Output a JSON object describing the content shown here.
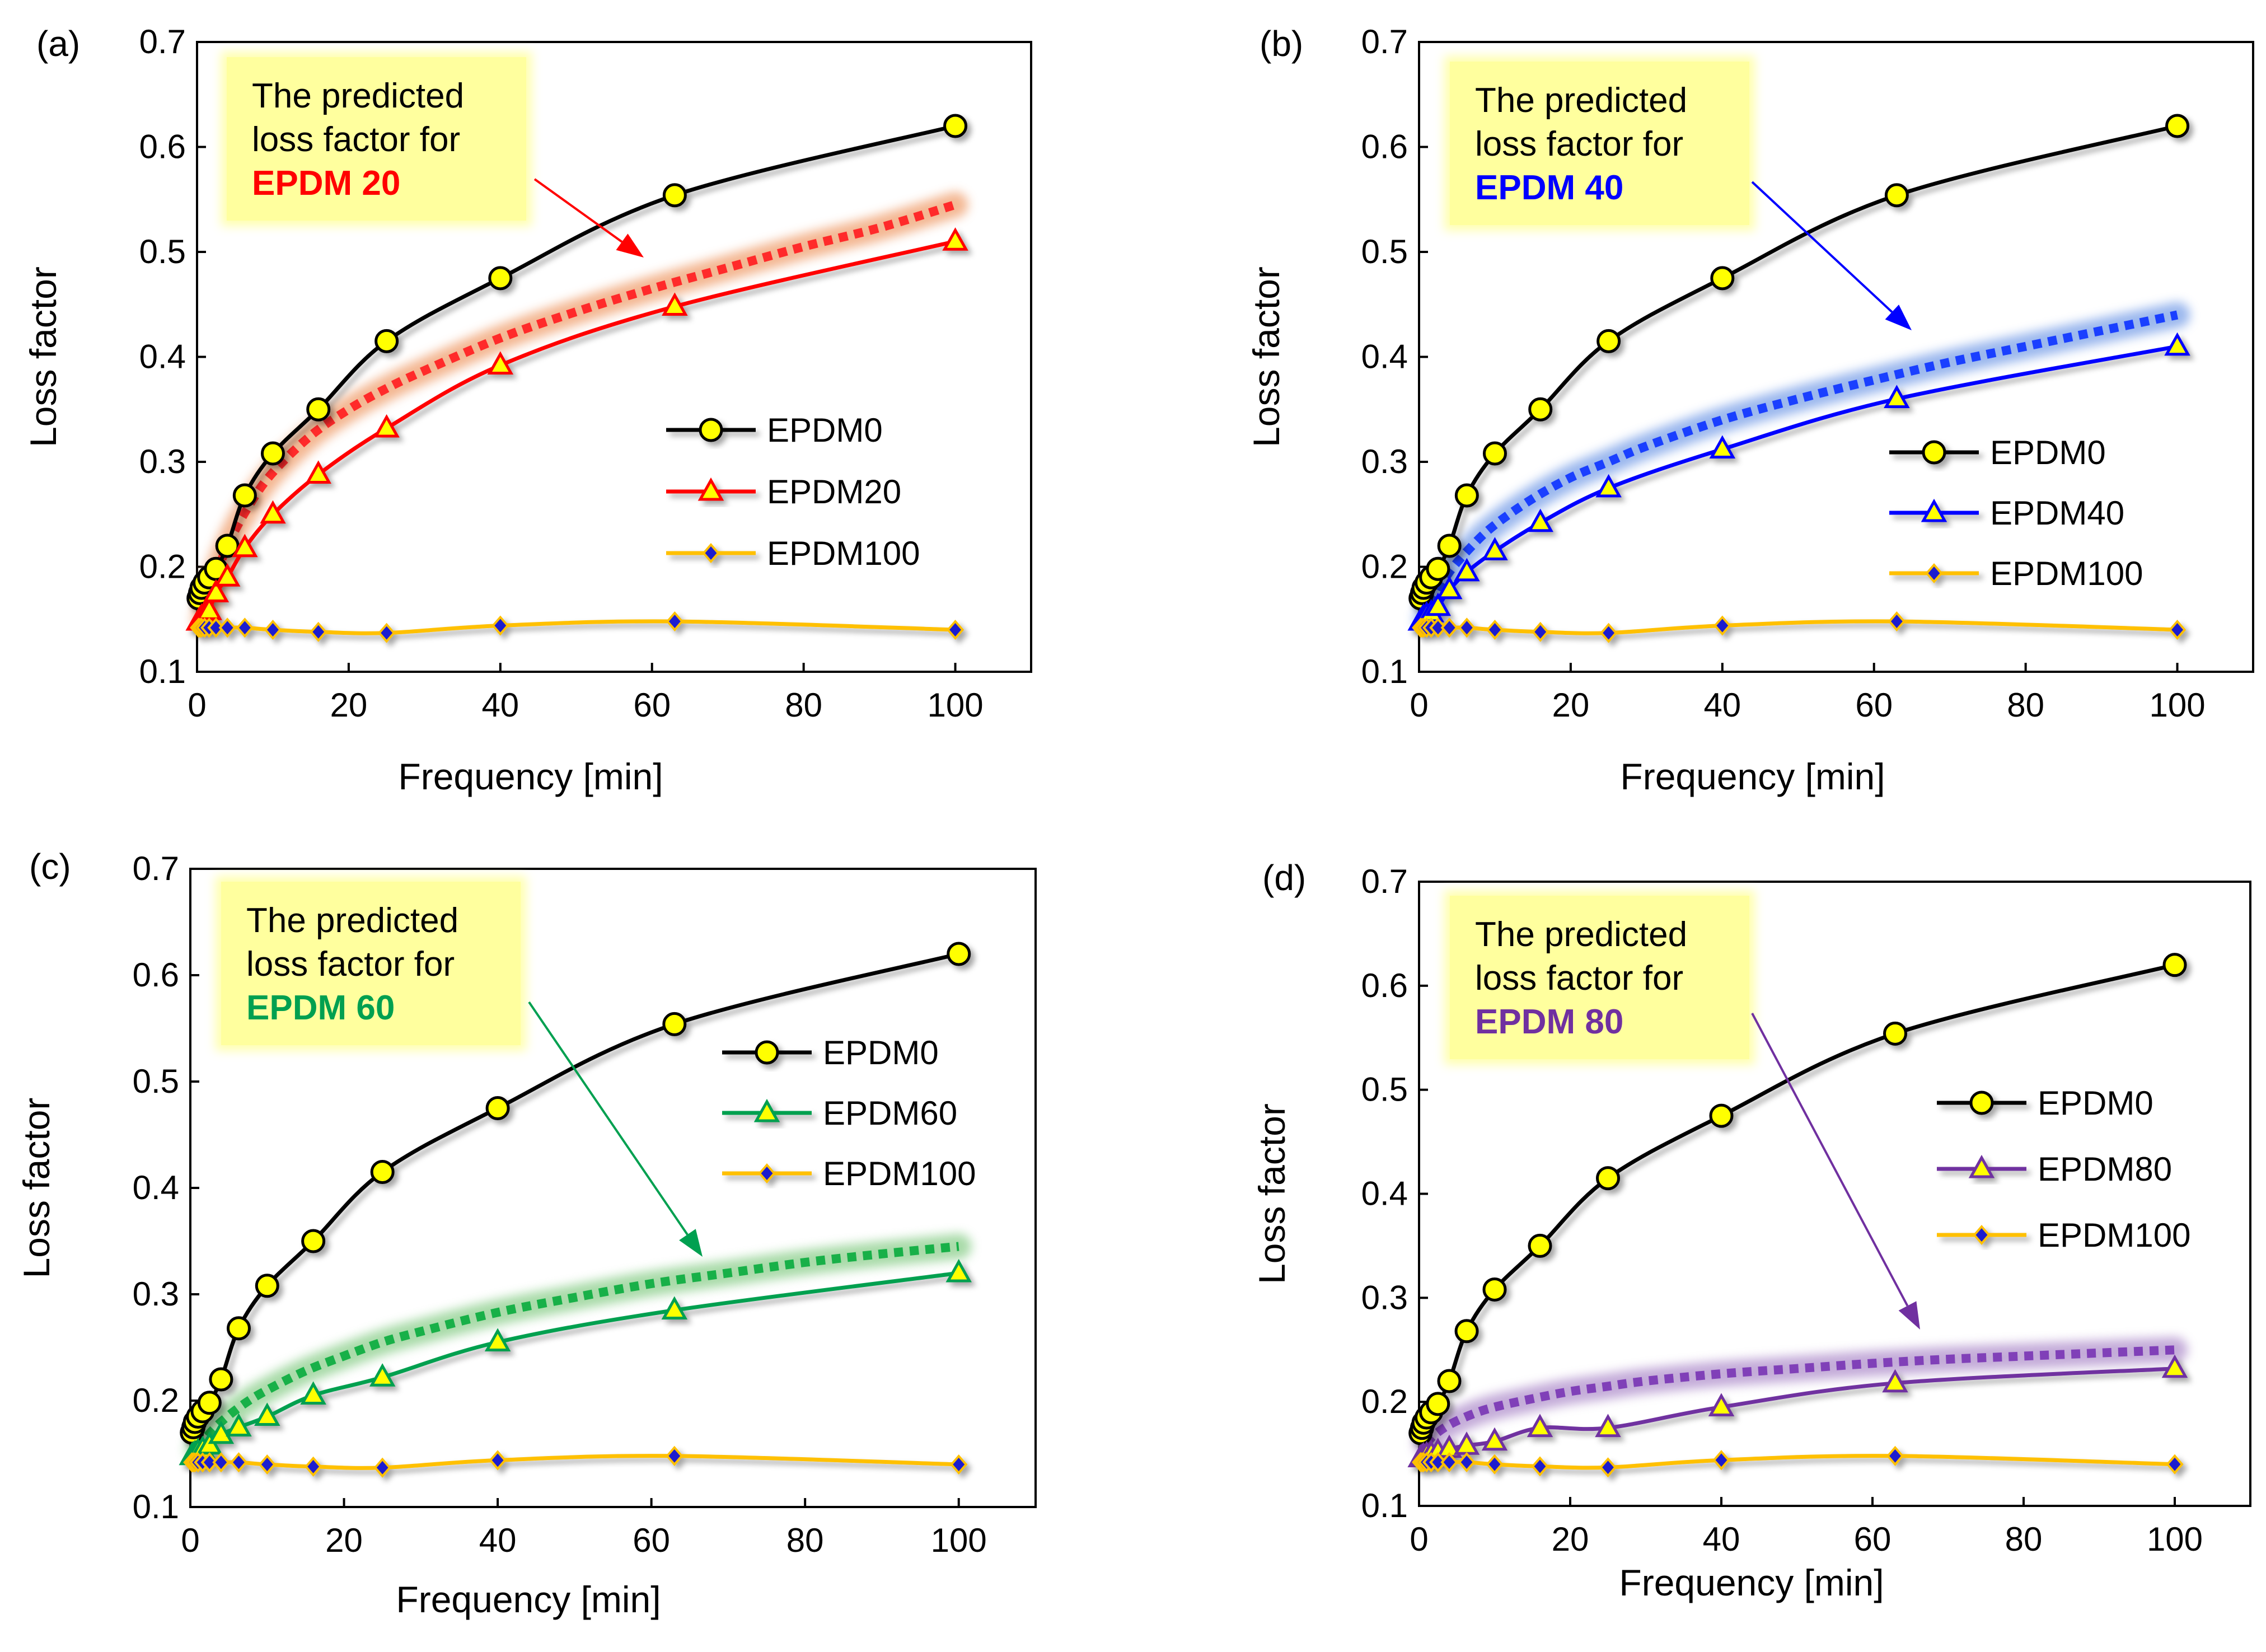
{
  "chart_data": [
    {
      "panel": "(a)",
      "type": "line",
      "xlabel": "Frequency [min]",
      "ylabel": "Loss factor",
      "xlim": [
        0,
        110
      ],
      "ylim": [
        0.1,
        0.7
      ],
      "xticks": [
        "0",
        "20",
        "40",
        "60",
        "80",
        "100"
      ],
      "yticks": [
        "0.1",
        "0.2",
        "0.3",
        "0.4",
        "0.5",
        "0.6",
        "0.7"
      ],
      "callout": {
        "line1": "The predicted",
        "line2": "loss factor for",
        "line3": "EPDM 20",
        "color": "#ff0000"
      },
      "series": [
        {
          "name": "EPDM0",
          "marker": "circle",
          "color": "#000000",
          "marker_fill": "#ffff00",
          "x": [
            0.2,
            0.4,
            0.6,
            1,
            1.6,
            2.5,
            4,
            6.3,
            10,
            16,
            25,
            40,
            63,
            100
          ],
          "y": [
            0.17,
            0.175,
            0.18,
            0.185,
            0.19,
            0.198,
            0.22,
            0.268,
            0.308,
            0.35,
            0.415,
            0.475,
            0.554,
            0.62
          ]
        },
        {
          "name": "EPDM20",
          "marker": "triangle",
          "color": "#ff0000",
          "marker_fill": "#ffff00",
          "x": [
            0.2,
            0.4,
            0.6,
            1,
            1.6,
            2.5,
            4,
            6.3,
            10,
            16,
            25,
            40,
            63,
            100
          ],
          "y": [
            0.148,
            0.15,
            0.152,
            0.155,
            0.158,
            0.175,
            0.19,
            0.218,
            0.25,
            0.288,
            0.332,
            0.392,
            0.448,
            0.51
          ]
        },
        {
          "name": "EPDM100",
          "marker": "diamond",
          "color": "#ffc000",
          "marker_fill": "#1f1fcf",
          "x": [
            0.2,
            0.4,
            0.6,
            1,
            1.6,
            2.5,
            4,
            6.3,
            10,
            16,
            25,
            40,
            63,
            100
          ],
          "y": [
            0.142,
            0.142,
            0.142,
            0.142,
            0.142,
            0.142,
            0.142,
            0.142,
            0.14,
            0.138,
            0.137,
            0.144,
            0.148,
            0.14
          ]
        },
        {
          "name": "",
          "style": "predicted",
          "color": "#ff2a2a",
          "glow": "#f0a070",
          "x": [
            1,
            2,
            4,
            7,
            10,
            15,
            20,
            25,
            30,
            40,
            50,
            60,
            70,
            80,
            90,
            100
          ],
          "y": [
            0.15,
            0.18,
            0.22,
            0.26,
            0.29,
            0.325,
            0.35,
            0.37,
            0.387,
            0.418,
            0.443,
            0.465,
            0.485,
            0.505,
            0.523,
            0.545
          ]
        }
      ]
    },
    {
      "panel": "(b)",
      "type": "line",
      "xlabel": "Frequency [min]",
      "ylabel": "Loss factor",
      "xlim": [
        0,
        110
      ],
      "ylim": [
        0.1,
        0.7
      ],
      "xticks": [
        "0",
        "20",
        "40",
        "60",
        "80",
        "100"
      ],
      "yticks": [
        "0.1",
        "0.2",
        "0.3",
        "0.4",
        "0.5",
        "0.6",
        "0.7"
      ],
      "callout": {
        "line1": "The predicted",
        "line2": "loss factor for",
        "line3": "EPDM 40",
        "color": "#0000ff"
      },
      "series": [
        {
          "name": "EPDM0",
          "marker": "circle",
          "color": "#000000",
          "marker_fill": "#ffff00",
          "x": [
            0.2,
            0.4,
            0.6,
            1,
            1.6,
            2.5,
            4,
            6.3,
            10,
            16,
            25,
            40,
            63,
            100
          ],
          "y": [
            0.17,
            0.175,
            0.18,
            0.185,
            0.19,
            0.198,
            0.22,
            0.268,
            0.308,
            0.35,
            0.415,
            0.475,
            0.554,
            0.62
          ]
        },
        {
          "name": "EPDM40",
          "marker": "triangle",
          "color": "#0000ff",
          "marker_fill": "#ffff00",
          "x": [
            0.2,
            0.4,
            0.6,
            1,
            1.6,
            2.5,
            4,
            6.3,
            10,
            16,
            25,
            40,
            63,
            100
          ],
          "y": [
            0.148,
            0.15,
            0.152,
            0.154,
            0.156,
            0.162,
            0.178,
            0.195,
            0.215,
            0.242,
            0.275,
            0.312,
            0.36,
            0.41
          ]
        },
        {
          "name": "EPDM100",
          "marker": "diamond",
          "color": "#ffc000",
          "marker_fill": "#1f1fcf",
          "x": [
            0.2,
            0.4,
            0.6,
            1,
            1.6,
            2.5,
            4,
            6.3,
            10,
            16,
            25,
            40,
            63,
            100
          ],
          "y": [
            0.142,
            0.142,
            0.142,
            0.142,
            0.142,
            0.142,
            0.142,
            0.142,
            0.14,
            0.138,
            0.137,
            0.144,
            0.148,
            0.14
          ]
        },
        {
          "name": "",
          "style": "predicted",
          "color": "#1a3fff",
          "glow": "#7aa0e8",
          "x": [
            1,
            2,
            4,
            7,
            10,
            15,
            20,
            25,
            30,
            40,
            50,
            60,
            70,
            80,
            90,
            100
          ],
          "y": [
            0.15,
            0.17,
            0.195,
            0.22,
            0.24,
            0.265,
            0.285,
            0.3,
            0.315,
            0.34,
            0.36,
            0.378,
            0.395,
            0.41,
            0.425,
            0.44
          ]
        }
      ]
    },
    {
      "panel": "(c)",
      "type": "line",
      "xlabel": "Frequency [min]",
      "ylabel": "Loss factor",
      "xlim": [
        0,
        110
      ],
      "ylim": [
        0.1,
        0.7
      ],
      "xticks": [
        "0",
        "20",
        "40",
        "60",
        "80",
        "100"
      ],
      "yticks": [
        "0.1",
        "0.2",
        "0.3",
        "0.4",
        "0.5",
        "0.6",
        "0.7"
      ],
      "callout": {
        "line1": "The predicted",
        "line2": "loss factor for",
        "line3": "EPDM 60",
        "color": "#00a050"
      },
      "series": [
        {
          "name": "EPDM0",
          "marker": "circle",
          "color": "#000000",
          "marker_fill": "#ffff00",
          "x": [
            0.2,
            0.4,
            0.6,
            1,
            1.6,
            2.5,
            4,
            6.3,
            10,
            16,
            25,
            40,
            63,
            100
          ],
          "y": [
            0.17,
            0.175,
            0.18,
            0.185,
            0.19,
            0.198,
            0.22,
            0.268,
            0.308,
            0.35,
            0.415,
            0.475,
            0.554,
            0.62
          ]
        },
        {
          "name": "EPDM60",
          "marker": "triangle",
          "color": "#00a050",
          "marker_fill": "#ffff00",
          "x": [
            0.2,
            0.4,
            0.6,
            1,
            1.6,
            2.5,
            4,
            6.3,
            10,
            16,
            25,
            40,
            63,
            100
          ],
          "y": [
            0.148,
            0.149,
            0.15,
            0.152,
            0.154,
            0.158,
            0.168,
            0.175,
            0.185,
            0.205,
            0.222,
            0.255,
            0.285,
            0.32
          ]
        },
        {
          "name": "EPDM100",
          "marker": "diamond",
          "color": "#ffc000",
          "marker_fill": "#1f1fcf",
          "x": [
            0.2,
            0.4,
            0.6,
            1,
            1.6,
            2.5,
            4,
            6.3,
            10,
            16,
            25,
            40,
            63,
            100
          ],
          "y": [
            0.142,
            0.142,
            0.142,
            0.142,
            0.142,
            0.142,
            0.142,
            0.142,
            0.14,
            0.138,
            0.137,
            0.144,
            0.148,
            0.14
          ]
        },
        {
          "name": "",
          "style": "predicted",
          "color": "#18b048",
          "glow": "#8ccf8c",
          "x": [
            1,
            2,
            4,
            7,
            10,
            15,
            20,
            25,
            30,
            40,
            50,
            60,
            70,
            80,
            90,
            100
          ],
          "y": [
            0.155,
            0.165,
            0.18,
            0.197,
            0.21,
            0.228,
            0.242,
            0.255,
            0.265,
            0.283,
            0.297,
            0.31,
            0.32,
            0.33,
            0.338,
            0.345
          ]
        }
      ]
    },
    {
      "panel": "(d)",
      "type": "line",
      "xlabel": "Frequency [min]",
      "ylabel": "Loss factor",
      "xlim": [
        0,
        110
      ],
      "ylim": [
        0.1,
        0.7
      ],
      "xticks": [
        "0",
        "20",
        "40",
        "60",
        "80",
        "100"
      ],
      "yticks": [
        "0.1",
        "0.2",
        "0.3",
        "0.4",
        "0.5",
        "0.6",
        "0.7"
      ],
      "callout": {
        "line1": "The predicted",
        "line2": "loss factor for",
        "line3": "EPDM 80",
        "color": "#7030a0"
      },
      "series": [
        {
          "name": "EPDM0",
          "marker": "circle",
          "color": "#000000",
          "marker_fill": "#ffff00",
          "x": [
            0.2,
            0.4,
            0.6,
            1,
            1.6,
            2.5,
            4,
            6.3,
            10,
            16,
            25,
            40,
            63,
            100
          ],
          "y": [
            0.17,
            0.175,
            0.18,
            0.185,
            0.19,
            0.198,
            0.22,
            0.268,
            0.308,
            0.35,
            0.415,
            0.475,
            0.554,
            0.62
          ]
        },
        {
          "name": "EPDM80",
          "marker": "triangle",
          "color": "#7030a0",
          "marker_fill": "#ffff00",
          "x": [
            0.2,
            0.4,
            0.6,
            1,
            1.6,
            2.5,
            4,
            6.3,
            10,
            16,
            25,
            40,
            63,
            100
          ],
          "y": [
            0.146,
            0.147,
            0.148,
            0.149,
            0.15,
            0.152,
            0.155,
            0.158,
            0.162,
            0.175,
            0.175,
            0.195,
            0.218,
            0.232
          ]
        },
        {
          "name": "EPDM100",
          "marker": "diamond",
          "color": "#ffc000",
          "marker_fill": "#1f1fcf",
          "x": [
            0.2,
            0.4,
            0.6,
            1,
            1.6,
            2.5,
            4,
            6.3,
            10,
            16,
            25,
            40,
            63,
            100
          ],
          "y": [
            0.142,
            0.142,
            0.142,
            0.142,
            0.142,
            0.142,
            0.142,
            0.142,
            0.14,
            0.138,
            0.137,
            0.144,
            0.148,
            0.14
          ]
        },
        {
          "name": "",
          "style": "predicted",
          "color": "#8040b8",
          "glow": "#b090cc",
          "x": [
            1,
            2,
            4,
            7,
            10,
            15,
            20,
            25,
            30,
            40,
            50,
            60,
            70,
            80,
            90,
            100
          ],
          "y": [
            0.16,
            0.168,
            0.178,
            0.188,
            0.195,
            0.203,
            0.21,
            0.215,
            0.22,
            0.227,
            0.232,
            0.237,
            0.241,
            0.244,
            0.247,
            0.25
          ]
        }
      ]
    }
  ]
}
